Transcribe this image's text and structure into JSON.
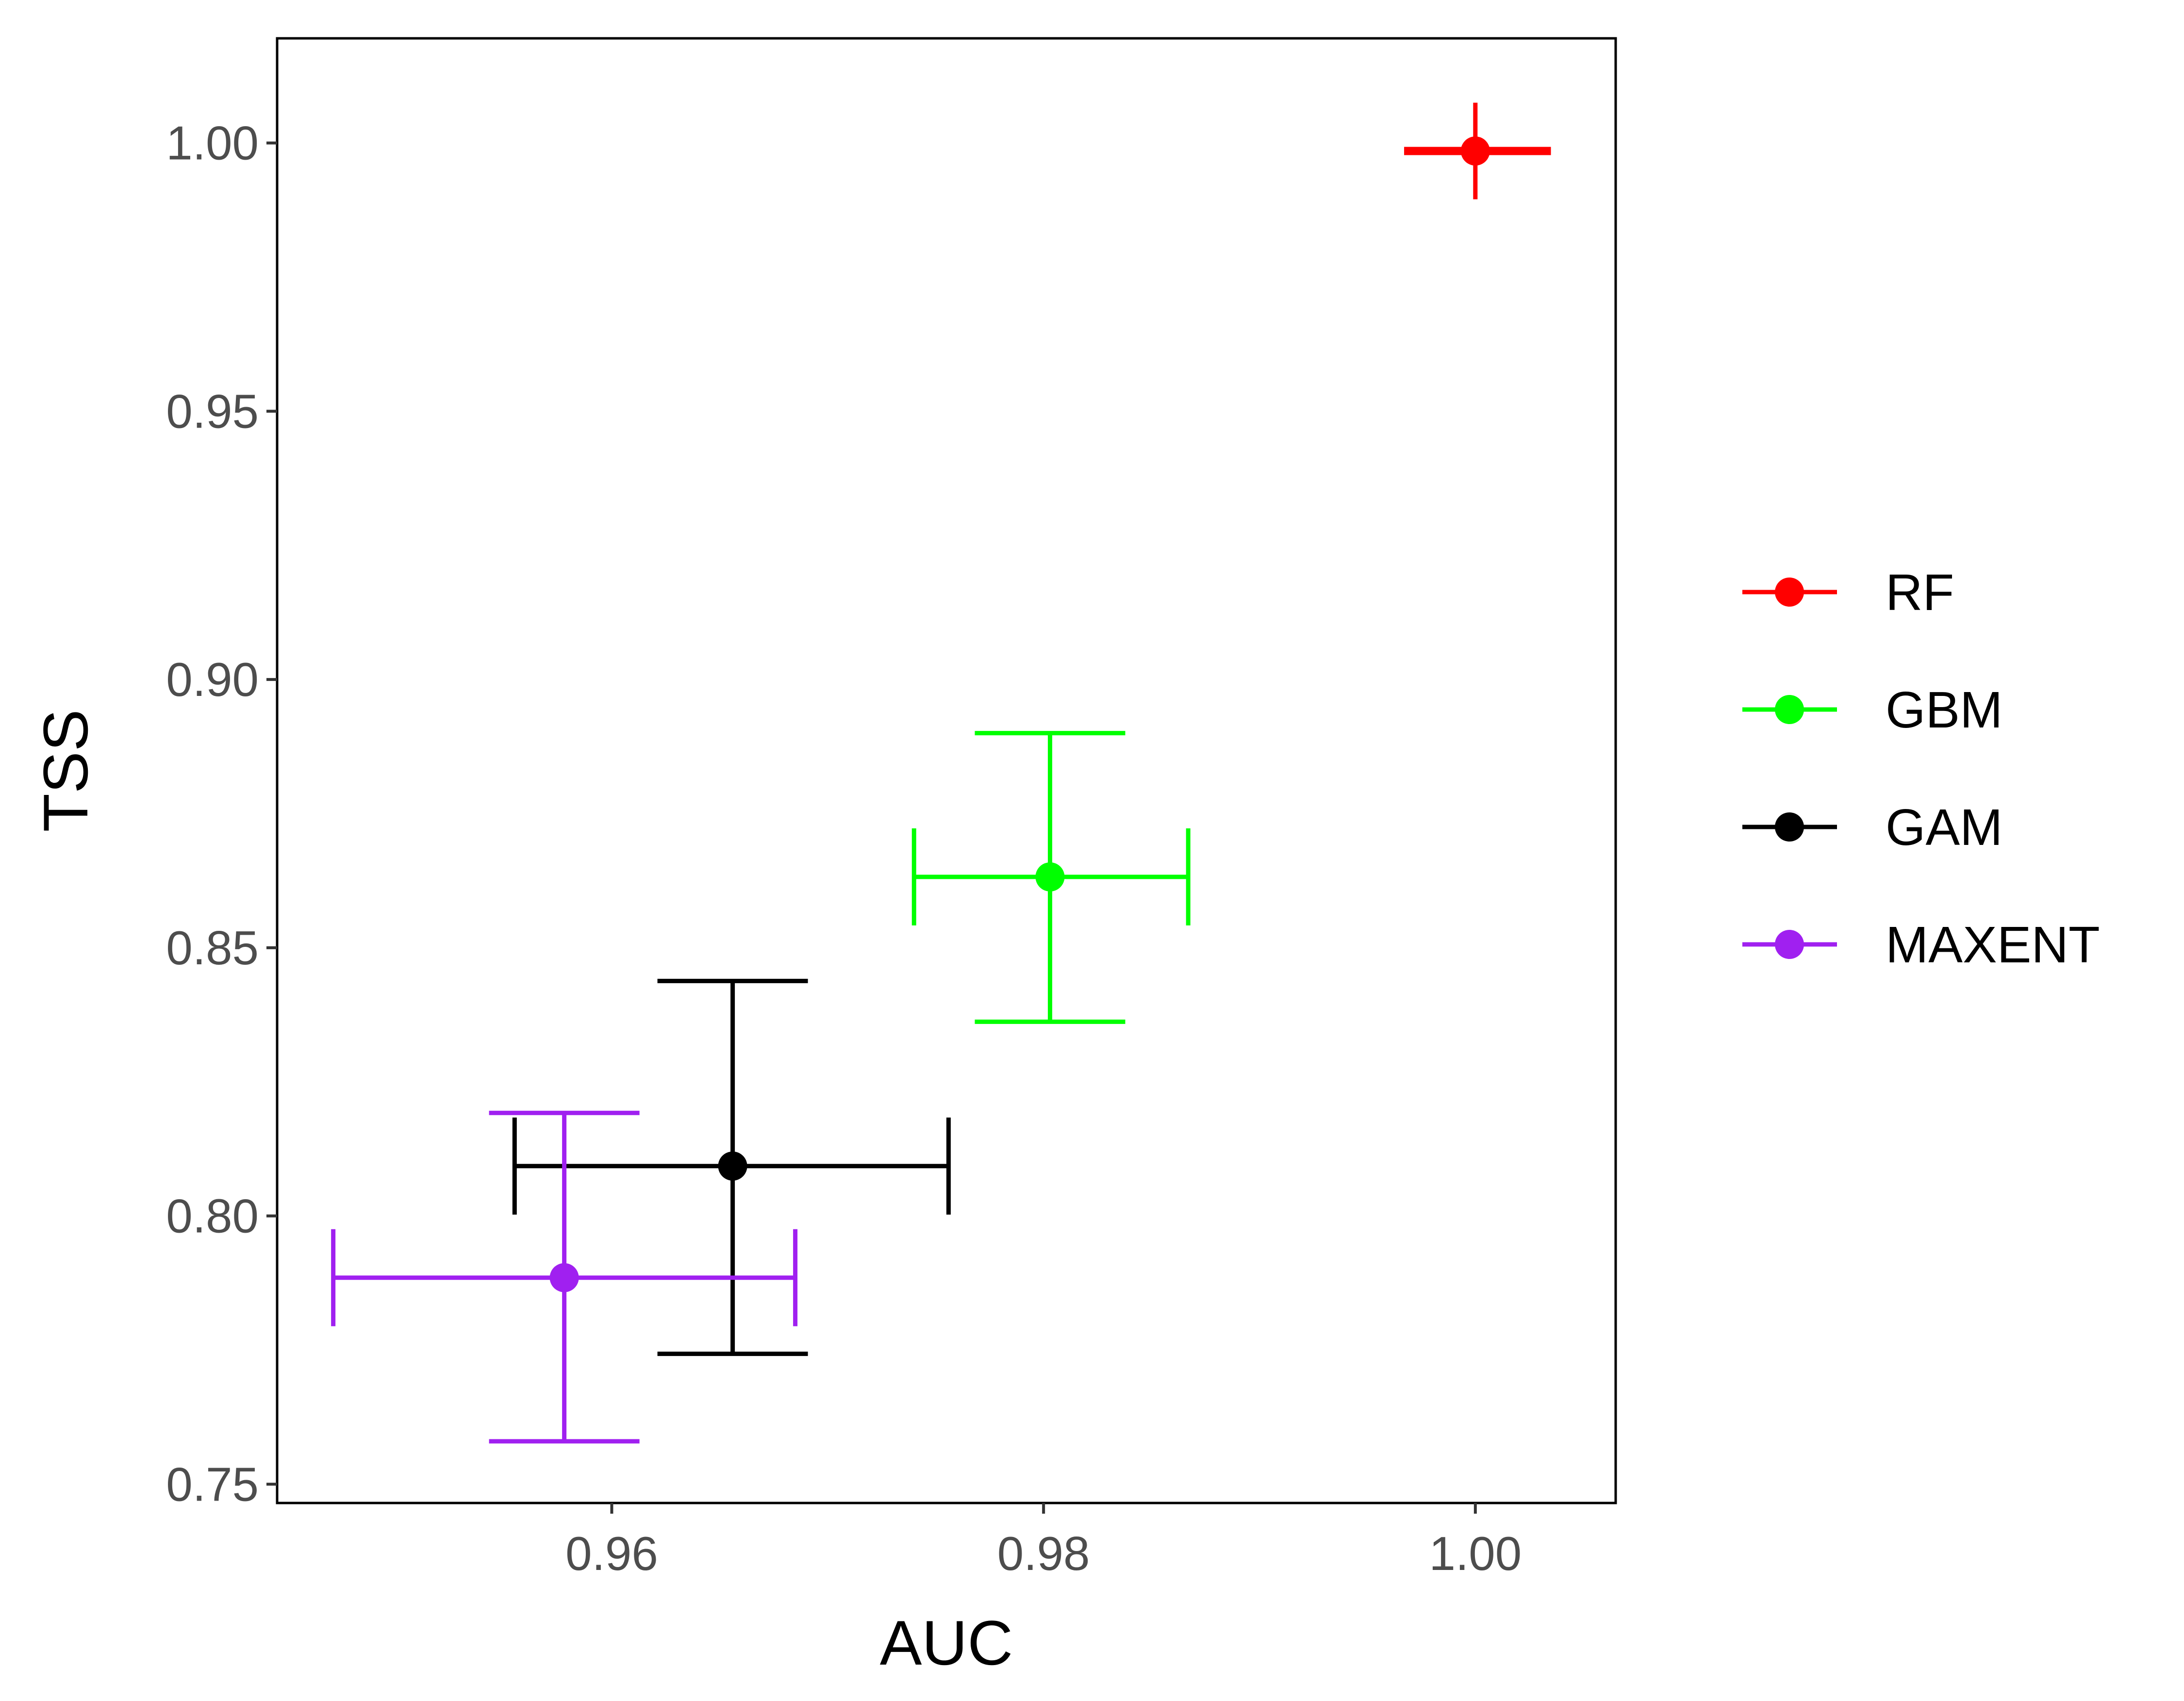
{
  "chart_data": {
    "type": "scatter",
    "title": "",
    "xlabel": "AUC",
    "ylabel": "TSS",
    "xlim": [
      0.9445,
      1.0065
    ],
    "ylim": [
      0.7465,
      1.0195
    ],
    "x_ticks": [
      {
        "value": 0.96,
        "label": "0.96"
      },
      {
        "value": 0.98,
        "label": "0.98"
      },
      {
        "value": 1.0,
        "label": "1.00"
      }
    ],
    "y_ticks": [
      {
        "value": 0.75,
        "label": "0.75"
      },
      {
        "value": 0.8,
        "label": "0.80"
      },
      {
        "value": 0.85,
        "label": "0.85"
      },
      {
        "value": 0.9,
        "label": "0.90"
      },
      {
        "value": 0.95,
        "label": "0.95"
      },
      {
        "value": 1.0,
        "label": "1.00"
      }
    ],
    "grid": false,
    "legend_position": "right",
    "series": [
      {
        "name": "RF",
        "color": "#ff0000",
        "x": 1.0,
        "y": 0.9985,
        "x_err": [
          0.9967,
          1.0035
        ],
        "y_err": [
          0.9895,
          1.0075
        ]
      },
      {
        "name": "GBM",
        "color": "#00ff00",
        "x": 0.9803,
        "y": 0.8632,
        "x_err": [
          0.974,
          0.9867
        ],
        "y_err": [
          0.8362,
          0.89
        ]
      },
      {
        "name": "GAM",
        "color": "#000000",
        "x": 0.9656,
        "y": 0.8093,
        "x_err": [
          0.9555,
          0.9756
        ],
        "y_err": [
          0.7743,
          0.8438
        ]
      },
      {
        "name": "MAXENT",
        "color": "#a020f0",
        "x": 0.9578,
        "y": 0.7885,
        "x_err": [
          0.9471,
          0.9685
        ],
        "y_err": [
          0.758,
          0.8192
        ]
      }
    ]
  }
}
